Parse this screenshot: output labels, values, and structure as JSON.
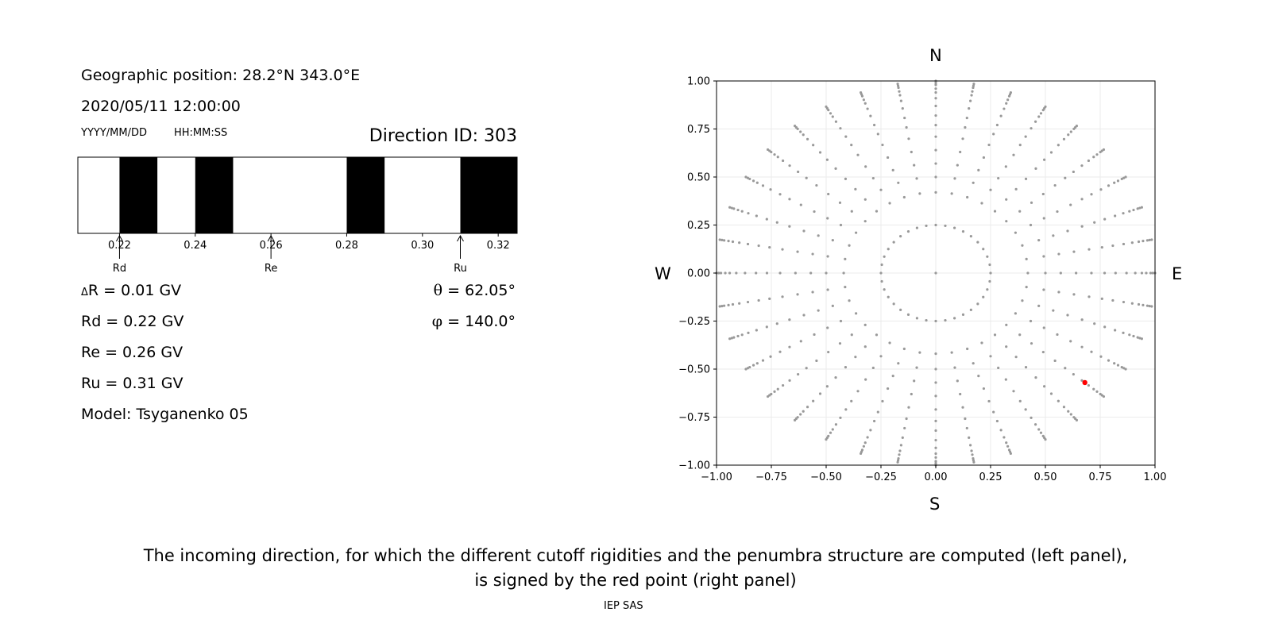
{
  "left_panel": {
    "position": "Geographic position: 28.2°N 343.0°E",
    "datetime": "2020/05/11 12:00:00",
    "date_format": "YYYY/MM/DD",
    "time_format": "HH:MM:SS",
    "direction_id": "Direction ID: 303",
    "delta_r_symbol": "Δ",
    "delta_r_text": "R = 0.01 GV",
    "rd": "Rd = 0.22 GV",
    "re": "Re = 0.26 GV",
    "ru": "Ru = 0.31 GV",
    "model": "Model: Tsyganenko 05",
    "theta_symbol": "θ",
    "theta_text": " = 62.05°",
    "phi_symbol": "φ",
    "phi_text": " = 140.0°"
  },
  "compass": {
    "n": "N",
    "s": "S",
    "w": "W",
    "e": "E"
  },
  "caption": {
    "line1": "The incoming direction, for which the different cutoff rigidities and the penumbra structure are computed (left panel),",
    "line2": "is signed by the red point (right panel)",
    "credit": "IEP SAS"
  },
  "chart_data": [
    {
      "type": "bar",
      "name": "penumbra",
      "xlim": [
        0.209,
        0.325
      ],
      "xticks": [
        "0.22",
        "0.24",
        "0.26",
        "0.28",
        "0.30",
        "0.32"
      ],
      "forbidden_bands": [
        [
          0.22,
          0.23
        ],
        [
          0.24,
          0.25
        ],
        [
          0.28,
          0.29
        ],
        [
          0.31,
          0.325
        ]
      ],
      "markers": [
        {
          "label": "Rd",
          "value": 0.22
        },
        {
          "label": "Re",
          "value": 0.26
        },
        {
          "label": "Ru",
          "value": 0.31
        }
      ]
    },
    {
      "type": "scatter",
      "name": "direction-map",
      "xlim": [
        -1,
        1
      ],
      "ylim": [
        -1,
        1
      ],
      "xticks": [
        "−1.00",
        "−0.75",
        "−0.50",
        "−0.25",
        "0.00",
        "0.25",
        "0.50",
        "0.75",
        "1.00"
      ],
      "yticks": [
        "1.00",
        "0.75",
        "0.50",
        "0.25",
        "0.00",
        "−0.25",
        "−0.50",
        "−0.75",
        "−1.00"
      ],
      "grid": true,
      "grid_color": "#ebebeb",
      "point_color": "#999999",
      "highlight_color": "#ff0000",
      "radial_points": [
        0.0,
        0.25,
        0.42,
        0.5,
        0.57,
        0.64,
        0.71,
        0.77,
        0.82,
        0.87,
        0.91,
        0.94,
        0.96,
        0.98,
        0.99,
        1.0
      ],
      "azimuth_step_deg": 10,
      "extra_ring_radius": 0.25,
      "extra_ring_count": 36,
      "highlight_point": {
        "x": 0.68,
        "y": -0.57
      }
    }
  ]
}
